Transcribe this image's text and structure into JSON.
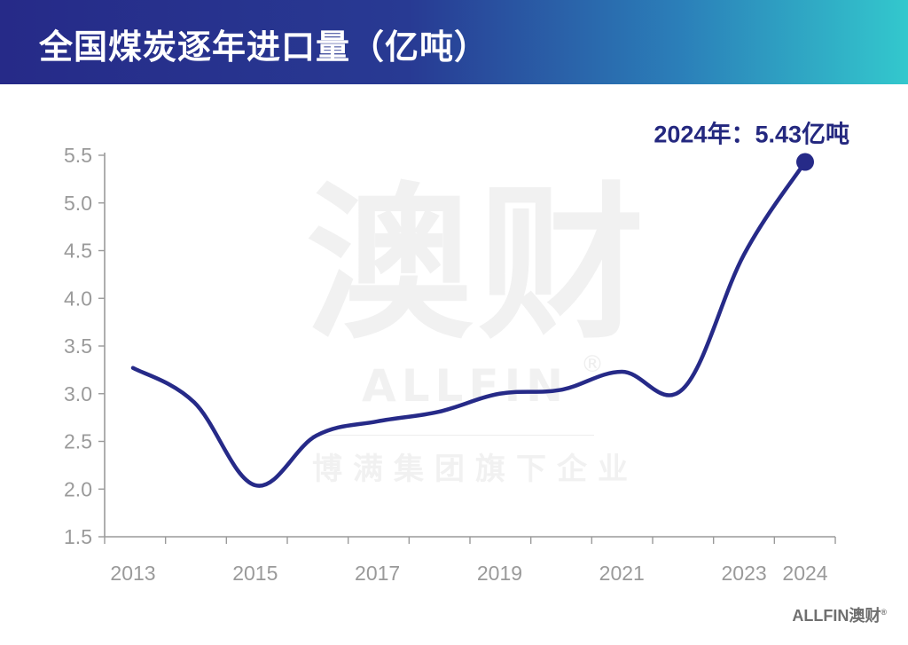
{
  "header": {
    "title": "全国煤炭逐年进口量（亿吨）"
  },
  "watermark": {
    "brand_cn": "澳财",
    "brand_en": "ALLFIN",
    "registered": "®",
    "tagline": "博满集团旗下企业"
  },
  "footer": {
    "logo_en": "ALLFIN",
    "logo_cn": "澳财",
    "registered": "®"
  },
  "colors": {
    "line": "#262a88",
    "axis": "#9a9a9a",
    "header_start": "#262a88",
    "header_end": "#33c8cd"
  },
  "chart_data": {
    "type": "line",
    "title": "全国煤炭逐年进口量（亿吨）",
    "xlabel": "",
    "ylabel": "",
    "x": [
      2013,
      2014,
      2015,
      2016,
      2017,
      2018,
      2019,
      2020,
      2021,
      2022,
      2023,
      2024
    ],
    "series": [
      {
        "values": [
          3.27,
          2.91,
          2.04,
          2.56,
          2.71,
          2.81,
          3.0,
          3.04,
          3.23,
          3.05,
          4.46,
          5.43
        ]
      }
    ],
    "x_tick_labels": [
      "2013",
      "2015",
      "2017",
      "2019",
      "2021",
      "2023",
      "2024"
    ],
    "y_ticks": [
      "1.5",
      "2.0",
      "2.5",
      "3.0",
      "3.5",
      "4.0",
      "4.5",
      "5.0",
      "5.5"
    ],
    "ylim": [
      1.5,
      5.5
    ],
    "grid": false,
    "annotation": {
      "x": 2024,
      "y": 5.43,
      "text": "2024年：5.43亿吨"
    }
  }
}
